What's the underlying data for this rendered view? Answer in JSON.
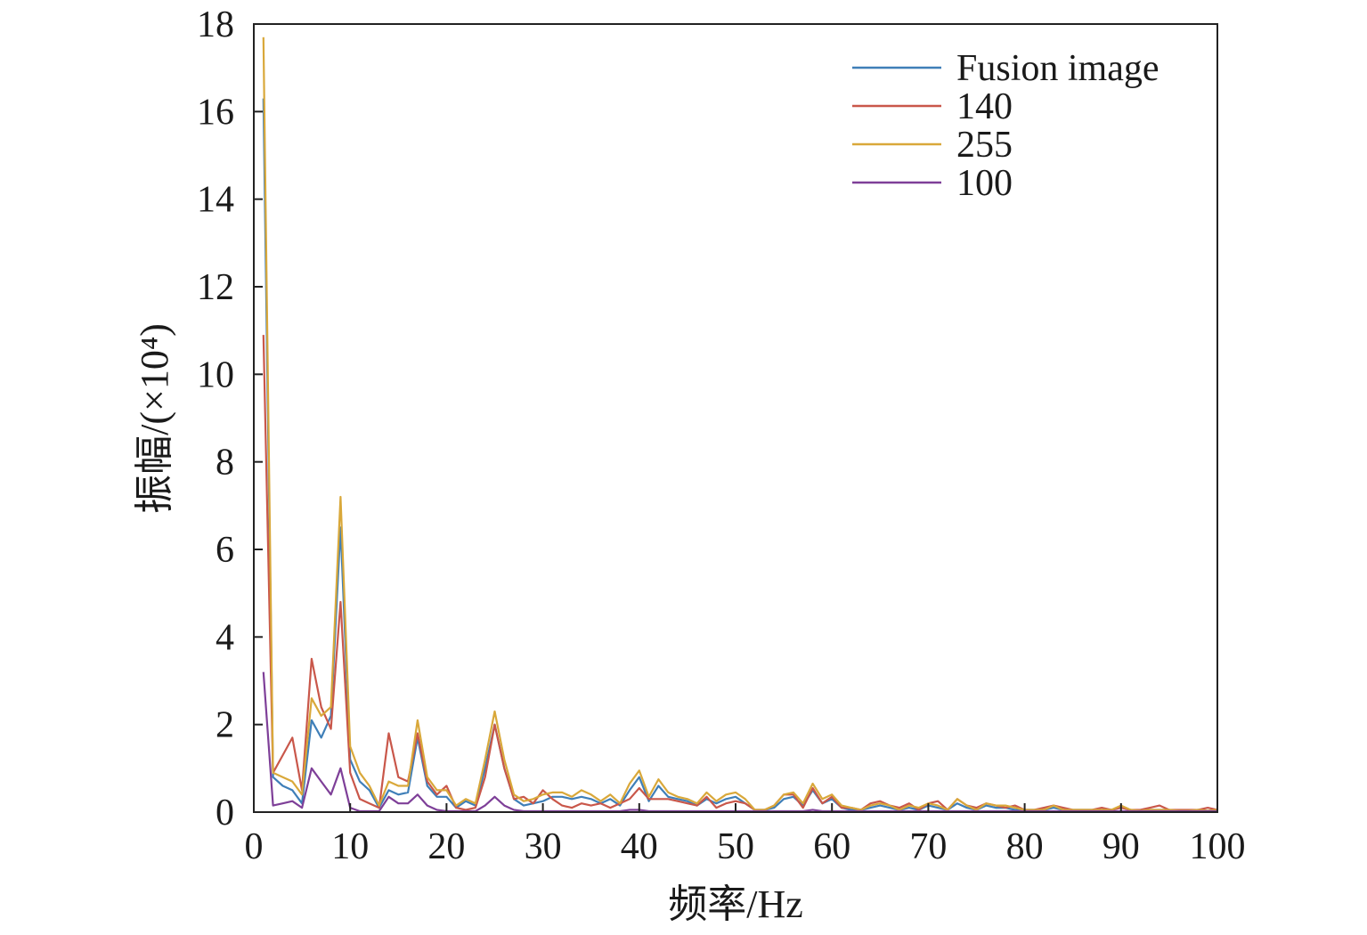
{
  "chart_data": {
    "type": "line",
    "xlabel": "频率/Hz",
    "ylabel": "振幅/(×10⁴)",
    "xlim": [
      0,
      100
    ],
    "ylim": [
      0,
      18
    ],
    "x_ticks": [
      "0",
      "10",
      "20",
      "30",
      "40",
      "50",
      "60",
      "70",
      "80",
      "90",
      "100"
    ],
    "y_ticks": [
      "0",
      "2",
      "4",
      "6",
      "8",
      "10",
      "12",
      "14",
      "16",
      "18"
    ],
    "grid": false,
    "legend_position": "top-right",
    "x": [
      1,
      2,
      3,
      4,
      5,
      6,
      7,
      8,
      9,
      10,
      11,
      12,
      13,
      14,
      15,
      16,
      17,
      18,
      19,
      20,
      21,
      22,
      23,
      24,
      25,
      26,
      27,
      28,
      29,
      30,
      31,
      32,
      33,
      34,
      35,
      36,
      37,
      38,
      39,
      40,
      41,
      42,
      43,
      44,
      45,
      46,
      47,
      48,
      49,
      50,
      51,
      52,
      53,
      54,
      55,
      56,
      57,
      58,
      59,
      60,
      61,
      62,
      63,
      64,
      65,
      66,
      67,
      68,
      69,
      70,
      71,
      72,
      73,
      74,
      75,
      76,
      77,
      78,
      79,
      80,
      81,
      82,
      83,
      84,
      85,
      86,
      87,
      88,
      89,
      90,
      91,
      92,
      93,
      94,
      95,
      96,
      97,
      98,
      99,
      100
    ],
    "series": [
      {
        "name": "Fusion image",
        "color": "#3f7fb8",
        "values": [
          16.3,
          0.8,
          0.6,
          0.5,
          0.2,
          2.1,
          1.7,
          2.2,
          6.5,
          1.2,
          0.7,
          0.5,
          0.1,
          0.5,
          0.4,
          0.45,
          1.7,
          0.6,
          0.35,
          0.35,
          0.1,
          0.25,
          0.15,
          1.0,
          2.0,
          1.0,
          0.3,
          0.15,
          0.2,
          0.25,
          0.35,
          0.35,
          0.3,
          0.35,
          0.3,
          0.2,
          0.3,
          0.15,
          0.5,
          0.8,
          0.25,
          0.6,
          0.35,
          0.3,
          0.25,
          0.15,
          0.3,
          0.2,
          0.3,
          0.35,
          0.2,
          0.05,
          0.05,
          0.1,
          0.3,
          0.35,
          0.15,
          0.5,
          0.2,
          0.3,
          0.1,
          0.05,
          0.05,
          0.1,
          0.15,
          0.1,
          0.05,
          0.1,
          0.05,
          0.15,
          0.1,
          0.05,
          0.2,
          0.1,
          0.05,
          0.15,
          0.1,
          0.1,
          0.05,
          0.05,
          0.05,
          0.05,
          0.1,
          0.05,
          0.05,
          0.05,
          0.05,
          0.05,
          0.05,
          0.1,
          0.05,
          0.03,
          0.05,
          0.05,
          0.05,
          0.03,
          0.03,
          0.05,
          0.03,
          0.05
        ]
      },
      {
        "name": "140",
        "color": "#c9574a",
        "values": [
          10.9,
          0.9,
          1.3,
          1.7,
          0.5,
          3.5,
          2.4,
          1.9,
          4.8,
          0.9,
          0.3,
          0.2,
          0.1,
          1.8,
          0.8,
          0.7,
          1.8,
          0.7,
          0.4,
          0.6,
          0.1,
          0.05,
          0.1,
          0.8,
          2.0,
          1.0,
          0.3,
          0.35,
          0.2,
          0.5,
          0.3,
          0.15,
          0.1,
          0.2,
          0.15,
          0.2,
          0.1,
          0.2,
          0.3,
          0.55,
          0.3,
          0.3,
          0.3,
          0.25,
          0.2,
          0.15,
          0.35,
          0.1,
          0.2,
          0.25,
          0.2,
          0.05,
          0.05,
          0.15,
          0.4,
          0.4,
          0.1,
          0.55,
          0.2,
          0.35,
          0.1,
          0.1,
          0.05,
          0.2,
          0.25,
          0.15,
          0.1,
          0.2,
          0.05,
          0.2,
          0.25,
          0.05,
          0.3,
          0.15,
          0.1,
          0.2,
          0.15,
          0.1,
          0.15,
          0.05,
          0.05,
          0.1,
          0.15,
          0.1,
          0.05,
          0.05,
          0.05,
          0.1,
          0.05,
          0.1,
          0.05,
          0.05,
          0.1,
          0.15,
          0.05,
          0.05,
          0.05,
          0.05,
          0.1,
          0.05
        ]
      },
      {
        "name": "255",
        "color": "#d9a83a",
        "values": [
          17.7,
          0.9,
          0.8,
          0.7,
          0.4,
          2.6,
          2.2,
          2.4,
          7.2,
          1.5,
          0.9,
          0.6,
          0.15,
          0.7,
          0.6,
          0.6,
          2.1,
          0.8,
          0.5,
          0.5,
          0.15,
          0.3,
          0.2,
          1.2,
          2.3,
          1.2,
          0.4,
          0.25,
          0.3,
          0.4,
          0.45,
          0.45,
          0.35,
          0.5,
          0.4,
          0.25,
          0.4,
          0.2,
          0.65,
          0.95,
          0.35,
          0.75,
          0.45,
          0.35,
          0.3,
          0.2,
          0.45,
          0.25,
          0.4,
          0.45,
          0.3,
          0.05,
          0.05,
          0.15,
          0.4,
          0.45,
          0.2,
          0.65,
          0.3,
          0.4,
          0.15,
          0.1,
          0.05,
          0.15,
          0.2,
          0.15,
          0.05,
          0.15,
          0.1,
          0.2,
          0.15,
          0.05,
          0.3,
          0.15,
          0.05,
          0.2,
          0.15,
          0.15,
          0.1,
          0.05,
          0.05,
          0.05,
          0.15,
          0.05,
          0.05,
          0.05,
          0.05,
          0.05,
          0.05,
          0.15,
          0.05,
          0.03,
          0.05,
          0.05,
          0.05,
          0.03,
          0.03,
          0.05,
          0.03,
          0.05
        ]
      },
      {
        "name": "100",
        "color": "#7e3f98",
        "values": [
          3.2,
          0.15,
          0.2,
          0.25,
          0.1,
          1.0,
          0.7,
          0.4,
          1.0,
          0.1,
          0.02,
          0.02,
          0.02,
          0.35,
          0.2,
          0.2,
          0.4,
          0.15,
          0.05,
          0.02,
          0.02,
          0.02,
          0.02,
          0.15,
          0.35,
          0.15,
          0.05,
          0.02,
          0.02,
          0.02,
          0.02,
          0.02,
          0.02,
          0.02,
          0.02,
          0.02,
          0.02,
          0.02,
          0.05,
          0.05,
          0.02,
          0.02,
          0.02,
          0.02,
          0.02,
          0.02,
          0.02,
          0.02,
          0.02,
          0.02,
          0.02,
          0.02,
          0.02,
          0.02,
          0.02,
          0.02,
          0.02,
          0.05,
          0.02,
          0.02,
          0.02,
          0.02,
          0.02,
          0.02,
          0.02,
          0.02,
          0.02,
          0.02,
          0.02,
          0.02,
          0.02,
          0.02,
          0.02,
          0.02,
          0.02,
          0.02,
          0.02,
          0.02,
          0.02,
          0.02,
          0.02,
          0.02,
          0.02,
          0.02,
          0.02,
          0.02,
          0.02,
          0.02,
          0.02,
          0.02,
          0.02,
          0.02,
          0.02,
          0.02,
          0.02,
          0.02,
          0.02,
          0.02,
          0.02,
          0.02
        ]
      }
    ]
  }
}
